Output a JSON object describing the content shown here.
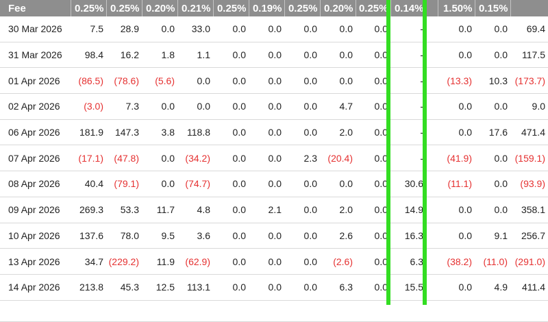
{
  "header": [
    "Fee",
    "0.25%",
    "0.25%",
    "0.20%",
    "0.21%",
    "0.25%",
    "0.19%",
    "0.25%",
    "0.20%",
    "0.25%",
    "0.14%",
    "",
    "1.50%",
    "0.15%",
    ""
  ],
  "highlight_color": "#33dd22",
  "negative_color": "#e53030",
  "rows": [
    [
      "30 Mar 2026",
      "7.5",
      "28.9",
      "0.0",
      "33.0",
      "0.0",
      "0.0",
      "0.0",
      "0.0",
      "0.0",
      "-",
      "",
      "0.0",
      "0.0",
      "69.4"
    ],
    [
      "31 Mar 2026",
      "98.4",
      "16.2",
      "1.8",
      "1.1",
      "0.0",
      "0.0",
      "0.0",
      "0.0",
      "0.0",
      "-",
      "",
      "0.0",
      "0.0",
      "117.5"
    ],
    [
      "01 Apr 2026",
      "(86.5)",
      "(78.6)",
      "(5.6)",
      "0.0",
      "0.0",
      "0.0",
      "0.0",
      "0.0",
      "0.0",
      "-",
      "",
      "(13.3)",
      "10.3",
      "(173.7)"
    ],
    [
      "02 Apr 2026",
      "(3.0)",
      "7.3",
      "0.0",
      "0.0",
      "0.0",
      "0.0",
      "0.0",
      "4.7",
      "0.0",
      "-",
      "",
      "0.0",
      "0.0",
      "9.0"
    ],
    [
      "06 Apr 2026",
      "181.9",
      "147.3",
      "3.8",
      "118.8",
      "0.0",
      "0.0",
      "0.0",
      "2.0",
      "0.0",
      "-",
      "",
      "0.0",
      "17.6",
      "471.4"
    ],
    [
      "07 Apr 2026",
      "(17.1)",
      "(47.8)",
      "0.0",
      "(34.2)",
      "0.0",
      "0.0",
      "2.3",
      "(20.4)",
      "0.0",
      "-",
      "",
      "(41.9)",
      "0.0",
      "(159.1)"
    ],
    [
      "08 Apr 2026",
      "40.4",
      "(79.1)",
      "0.0",
      "(74.7)",
      "0.0",
      "0.0",
      "0.0",
      "0.0",
      "0.0",
      "30.6",
      "",
      "(11.1)",
      "0.0",
      "(93.9)"
    ],
    [
      "09 Apr 2026",
      "269.3",
      "53.3",
      "11.7",
      "4.8",
      "0.0",
      "2.1",
      "0.0",
      "2.0",
      "0.0",
      "14.9",
      "",
      "0.0",
      "0.0",
      "358.1"
    ],
    [
      "10 Apr 2026",
      "137.6",
      "78.0",
      "9.5",
      "3.6",
      "0.0",
      "0.0",
      "0.0",
      "2.6",
      "0.0",
      "16.3",
      "",
      "0.0",
      "9.1",
      "256.7"
    ],
    [
      "13 Apr 2026",
      "34.7",
      "(229.2)",
      "11.9",
      "(62.9)",
      "0.0",
      "0.0",
      "0.0",
      "(2.6)",
      "0.0",
      "6.3",
      "",
      "(38.2)",
      "(11.0)",
      "(291.0)"
    ],
    [
      "14 Apr 2026",
      "213.8",
      "45.3",
      "12.5",
      "113.1",
      "0.0",
      "0.0",
      "0.0",
      "6.3",
      "0.0",
      "15.5",
      "",
      "0.0",
      "4.9",
      "411.4"
    ],
    [
      "",
      "",
      "",
      "",
      "",
      "",
      "",
      "",
      "",
      "",
      "",
      "",
      "",
      "",
      ""
    ]
  ]
}
